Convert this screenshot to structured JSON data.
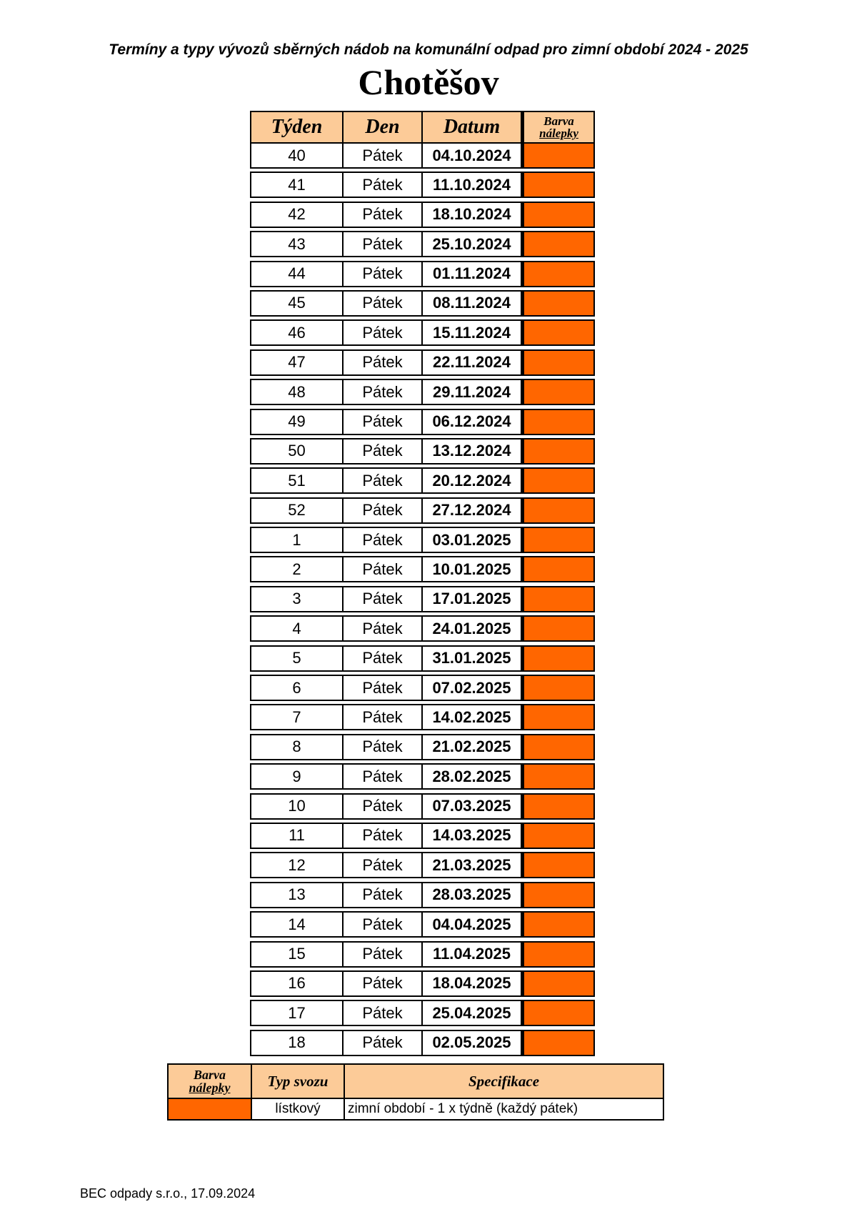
{
  "subtitle": "Termíny a typy vývozů sběrných nádob na komunální odpad pro zimní období 2024 - 2025",
  "title": "Chotěšov",
  "table": {
    "headers": {
      "week": "Týden",
      "day": "Den",
      "date": "Datum",
      "color_line1": "Barva",
      "color_line2": "nálepky"
    },
    "sticker_color": "#FF6600",
    "rows": [
      {
        "week": "40",
        "day": "Pátek",
        "date": "04.10.2024"
      },
      {
        "week": "41",
        "day": "Pátek",
        "date": "11.10.2024"
      },
      {
        "week": "42",
        "day": "Pátek",
        "date": "18.10.2024"
      },
      {
        "week": "43",
        "day": "Pátek",
        "date": "25.10.2024"
      },
      {
        "week": "44",
        "day": "Pátek",
        "date": "01.11.2024"
      },
      {
        "week": "45",
        "day": "Pátek",
        "date": "08.11.2024"
      },
      {
        "week": "46",
        "day": "Pátek",
        "date": "15.11.2024"
      },
      {
        "week": "47",
        "day": "Pátek",
        "date": "22.11.2024"
      },
      {
        "week": "48",
        "day": "Pátek",
        "date": "29.11.2024"
      },
      {
        "week": "49",
        "day": "Pátek",
        "date": "06.12.2024"
      },
      {
        "week": "50",
        "day": "Pátek",
        "date": "13.12.2024"
      },
      {
        "week": "51",
        "day": "Pátek",
        "date": "20.12.2024"
      },
      {
        "week": "52",
        "day": "Pátek",
        "date": "27.12.2024"
      },
      {
        "week": "1",
        "day": "Pátek",
        "date": "03.01.2025"
      },
      {
        "week": "2",
        "day": "Pátek",
        "date": "10.01.2025"
      },
      {
        "week": "3",
        "day": "Pátek",
        "date": "17.01.2025"
      },
      {
        "week": "4",
        "day": "Pátek",
        "date": "24.01.2025"
      },
      {
        "week": "5",
        "day": "Pátek",
        "date": "31.01.2025"
      },
      {
        "week": "6",
        "day": "Pátek",
        "date": "07.02.2025"
      },
      {
        "week": "7",
        "day": "Pátek",
        "date": "14.02.2025"
      },
      {
        "week": "8",
        "day": "Pátek",
        "date": "21.02.2025"
      },
      {
        "week": "9",
        "day": "Pátek",
        "date": "28.02.2025"
      },
      {
        "week": "10",
        "day": "Pátek",
        "date": "07.03.2025"
      },
      {
        "week": "11",
        "day": "Pátek",
        "date": "14.03.2025"
      },
      {
        "week": "12",
        "day": "Pátek",
        "date": "21.03.2025"
      },
      {
        "week": "13",
        "day": "Pátek",
        "date": "28.03.2025"
      },
      {
        "week": "14",
        "day": "Pátek",
        "date": "04.04.2025"
      },
      {
        "week": "15",
        "day": "Pátek",
        "date": "11.04.2025"
      },
      {
        "week": "16",
        "day": "Pátek",
        "date": "18.04.2025"
      },
      {
        "week": "17",
        "day": "Pátek",
        "date": "25.04.2025"
      },
      {
        "week": "18",
        "day": "Pátek",
        "date": "02.05.2025"
      }
    ]
  },
  "legend": {
    "headers": {
      "color_line1": "Barva",
      "color_line2": "nálepky",
      "type": "Typ svozu",
      "spec": "Specifikace"
    },
    "row": {
      "color": "#FF6600",
      "type": "lístkový",
      "spec": "zimní období - 1 x týdně (každý pátek)"
    }
  },
  "footer": "BEC odpady s.r.o., 17.09.2024"
}
